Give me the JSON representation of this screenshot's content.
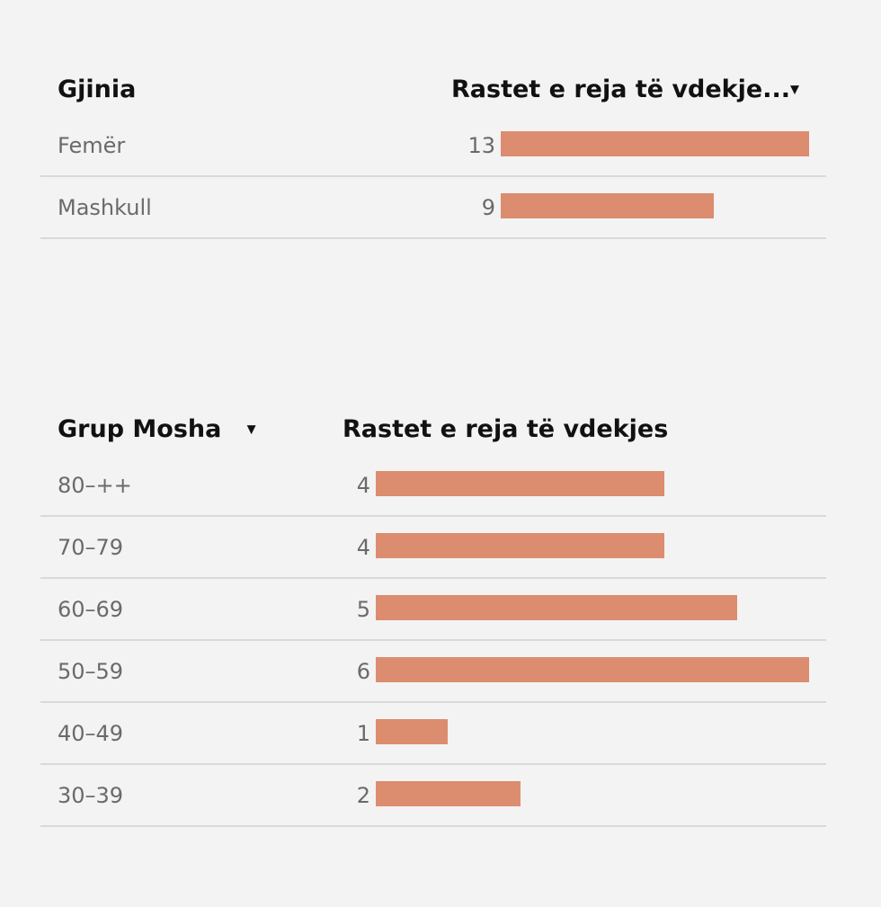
{
  "chart_data": [
    {
      "type": "table",
      "columns": [
        "Gjinia",
        "Rastet e reja të vdekje..."
      ],
      "categories": [
        "Femër",
        "Mashkull"
      ],
      "values": [
        13,
        9
      ],
      "bar_color": "#dc8c6f",
      "sort_indicator": "caret-down-icon"
    },
    {
      "type": "table",
      "columns": [
        "Grup Mosha",
        "Rastet e reja të vdekjes"
      ],
      "categories": [
        "80–++",
        "70–79",
        "60–69",
        "50–59",
        "40–49",
        "30–39"
      ],
      "values": [
        4,
        4,
        5,
        6,
        1,
        2
      ],
      "bar_color": "#dc8c6f",
      "sort_indicator": "caret-down-icon"
    }
  ]
}
